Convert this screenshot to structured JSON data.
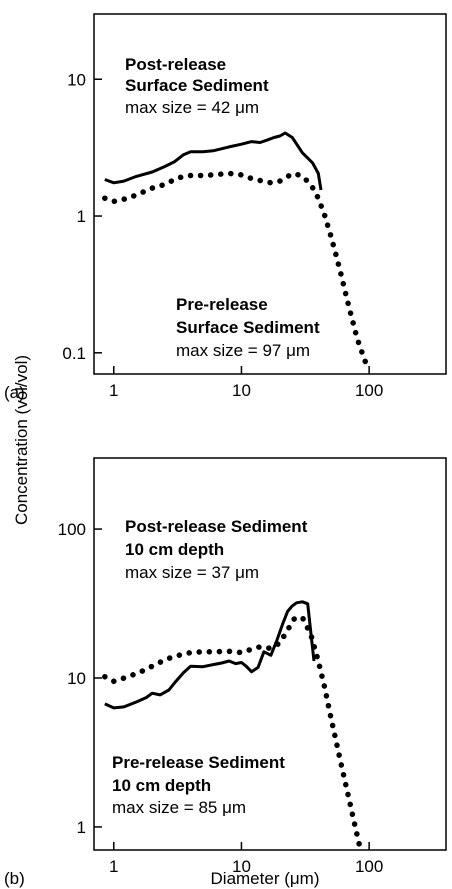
{
  "figure": {
    "ylabel": "Concentration (vol/vol)",
    "xlabel": "Diameter (μm)"
  },
  "chart_data": [
    {
      "type": "line",
      "panel_label": "(a)",
      "xscale": "log",
      "yscale": "log",
      "xlim": [
        0.7,
        400
      ],
      "ylim": [
        0.07,
        30
      ],
      "xticks": [
        1,
        10,
        100
      ],
      "xtick_labels": [
        "1",
        "10",
        "100"
      ],
      "yticks": [
        0.1,
        1,
        10
      ],
      "ytick_labels": [
        "0.1",
        "1",
        "10"
      ],
      "series": [
        {
          "style": "solid",
          "x": [
            0.85,
            1,
            1.2,
            1.5,
            2,
            2.5,
            3,
            3.5,
            4,
            5,
            6,
            8,
            10,
            12,
            14,
            16,
            18,
            20,
            22,
            25,
            30,
            36,
            40,
            42
          ],
          "y": [
            1.85,
            1.75,
            1.8,
            1.95,
            2.1,
            2.3,
            2.5,
            2.8,
            2.95,
            2.95,
            3.0,
            3.2,
            3.35,
            3.5,
            3.45,
            3.6,
            3.75,
            3.85,
            4.05,
            3.75,
            2.9,
            2.45,
            2.05,
            1.55
          ]
        },
        {
          "style": "dotted",
          "x": [
            0.85,
            1,
            1.3,
            1.7,
            2,
            2.5,
            3,
            3.5,
            4,
            5,
            6,
            8,
            10,
            12,
            14,
            17,
            20,
            23,
            26,
            30,
            35,
            40,
            45,
            50,
            55,
            60,
            65,
            70,
            75,
            80,
            85,
            90,
            97
          ],
          "y": [
            1.35,
            1.28,
            1.35,
            1.5,
            1.6,
            1.7,
            1.85,
            1.95,
            1.98,
            1.98,
            2.0,
            2.05,
            2.0,
            1.88,
            1.82,
            1.75,
            1.8,
            1.95,
            2.05,
            1.95,
            1.7,
            1.35,
            1.0,
            0.72,
            0.52,
            0.38,
            0.28,
            0.21,
            0.165,
            0.13,
            0.11,
            0.095,
            0.078
          ]
        }
      ],
      "annotations": [
        {
          "lines": [
            "Post-release",
            "Surface Sediment"
          ],
          "note": "max size = 42 μm"
        },
        {
          "lines": [
            "Pre-release",
            "Surface Sediment"
          ],
          "note": "max size = 97 μm"
        }
      ]
    },
    {
      "type": "line",
      "panel_label": "(b)",
      "xscale": "log",
      "yscale": "log",
      "xlim": [
        0.7,
        400
      ],
      "ylim": [
        0.7,
        300
      ],
      "xticks": [
        1,
        10,
        100
      ],
      "xtick_labels": [
        "1",
        "10",
        "100"
      ],
      "yticks": [
        1,
        10,
        100
      ],
      "ytick_labels": [
        "1",
        "10",
        "100"
      ],
      "series": [
        {
          "style": "solid",
          "x": [
            0.85,
            1,
            1.2,
            1.5,
            1.8,
            2,
            2.3,
            2.7,
            3,
            3.5,
            4,
            5,
            6,
            7,
            8,
            9,
            10,
            11,
            12,
            13.5,
            15,
            17,
            19,
            21,
            23,
            25,
            27,
            30,
            33,
            35,
            37
          ],
          "y": [
            6.7,
            6.3,
            6.4,
            6.9,
            7.4,
            7.9,
            7.7,
            8.3,
            9.3,
            10.8,
            12.0,
            11.9,
            12.3,
            12.6,
            13.0,
            12.5,
            12.7,
            11.9,
            11.0,
            11.8,
            15.0,
            14.2,
            18.0,
            23.0,
            28.0,
            30.5,
            32.0,
            32.5,
            31.5,
            20.0,
            13.0
          ]
        },
        {
          "style": "dotted",
          "x": [
            0.85,
            1,
            1.3,
            1.7,
            2,
            2.5,
            3,
            4,
            5,
            6,
            8,
            10,
            12,
            14,
            17,
            20,
            23,
            26,
            30,
            35,
            40,
            45,
            50,
            55,
            60,
            65,
            70,
            75,
            80,
            85
          ],
          "y": [
            10.2,
            9.5,
            10.2,
            11.2,
            12.0,
            13.2,
            14.0,
            14.8,
            15.0,
            15.0,
            15.1,
            14.8,
            15.6,
            16.2,
            15.8,
            17.2,
            21.0,
            25.0,
            25.5,
            19.5,
            13.0,
            8.5,
            5.5,
            3.8,
            2.7,
            2.0,
            1.5,
            1.15,
            0.9,
            0.72
          ]
        }
      ],
      "annotations": [
        {
          "lines": [
            "Post-release Sediment",
            "10 cm depth"
          ],
          "note": "max size = 37 μm"
        },
        {
          "lines": [
            "Pre-release Sediment",
            "10 cm depth"
          ],
          "note": "max size = 85 μm"
        }
      ]
    }
  ]
}
